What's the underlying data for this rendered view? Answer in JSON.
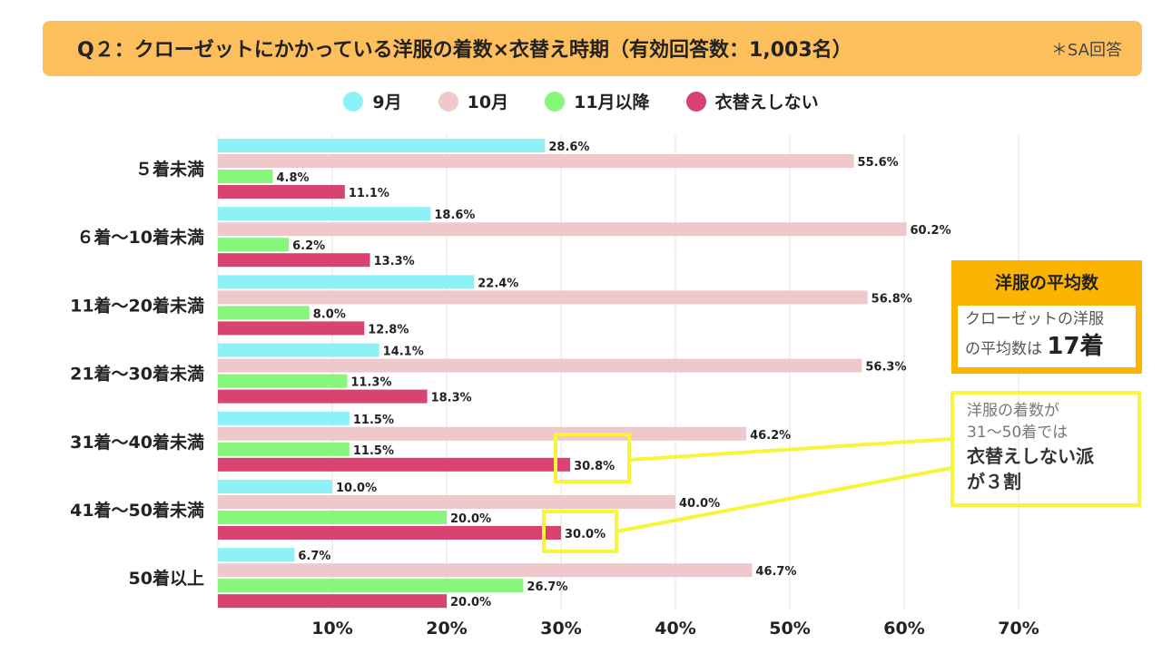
{
  "header": {
    "title": "Q２：クローゼットにかかっている洋服の着数×衣替え時期（有効回答数：1,003名）",
    "note": "＊SA回答"
  },
  "chart_data": {
    "type": "bar",
    "orientation": "horizontal",
    "categories": [
      "５着未満",
      "６着〜10着未満",
      "11着〜20着未満",
      "21着〜30着未満",
      "31着〜40着未満",
      "41着〜50着未満",
      "50着以上"
    ],
    "series": [
      {
        "name": "9月",
        "color": "#8ef1f6",
        "values": [
          28.6,
          18.6,
          22.4,
          14.1,
          11.5,
          10.0,
          6.7
        ]
      },
      {
        "name": "10月",
        "color": "#efc8cc",
        "values": [
          55.6,
          60.2,
          56.8,
          56.3,
          46.2,
          40.0,
          46.7
        ]
      },
      {
        "name": "11月以降",
        "color": "#86f77b",
        "values": [
          4.8,
          6.2,
          8.0,
          11.3,
          11.5,
          20.0,
          26.7
        ]
      },
      {
        "name": "衣替えしない",
        "color": "#d8436f",
        "values": [
          11.1,
          13.3,
          12.8,
          18.3,
          30.8,
          30.0,
          20.0
        ]
      }
    ],
    "xticks": [
      "10%",
      "20%",
      "30%",
      "40%",
      "50%",
      "60%",
      "70%"
    ],
    "xlim": [
      0,
      70
    ],
    "unit": "%",
    "grid": true,
    "legend": "top"
  },
  "avg_box": {
    "title": "洋服の平均数",
    "line1": "クローゼットの洋服",
    "line2": "の平均数は",
    "value": "17着"
  },
  "callout": {
    "line1": "洋服の着数が",
    "line2": "31〜50着では",
    "line3": "衣替えしない派",
    "line4": "が３割"
  }
}
